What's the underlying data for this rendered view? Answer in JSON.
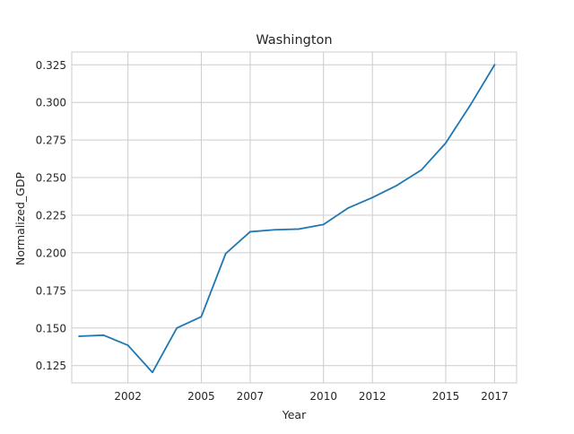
{
  "chart_data": {
    "type": "line",
    "title": "Washington",
    "xlabel": "Year",
    "ylabel": "Normalized_GDP",
    "xlim": [
      1999.7,
      2017.9
    ],
    "ylim": [
      0.1135,
      0.3335
    ],
    "x_ticks": [
      2002,
      2005,
      2007,
      2010,
      2012,
      2015,
      2017
    ],
    "y_ticks": [
      0.125,
      0.15,
      0.175,
      0.2,
      0.225,
      0.25,
      0.275,
      0.3,
      0.325
    ],
    "y_tick_labels": [
      "0.125",
      "0.150",
      "0.175",
      "0.200",
      "0.225",
      "0.250",
      "0.275",
      "0.300",
      "0.325"
    ],
    "grid": true,
    "colors": {
      "line": "#1f77b4",
      "grid": "#cccccc",
      "spine": "#cccccc"
    },
    "series": [
      {
        "x": [
          2000,
          2001,
          2002,
          2003,
          2004,
          2005,
          2006,
          2007,
          2008,
          2009,
          2010,
          2011,
          2012,
          2013,
          2014,
          2015,
          2016,
          2017
        ],
        "values": [
          0.1445,
          0.1452,
          0.1385,
          0.1205,
          0.15,
          0.1575,
          0.1995,
          0.214,
          0.2153,
          0.2158,
          0.2188,
          0.2297,
          0.2367,
          0.2448,
          0.255,
          0.273,
          0.298,
          0.325
        ]
      }
    ]
  }
}
